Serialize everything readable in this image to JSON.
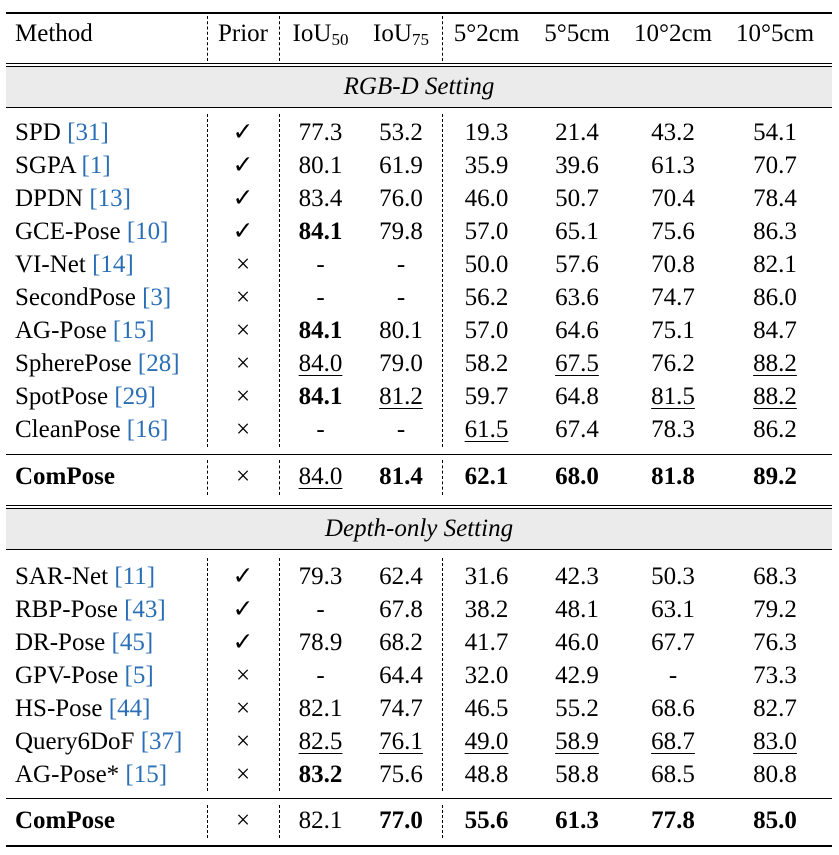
{
  "header": {
    "method": "Method",
    "prior": "Prior",
    "iou50_base": "IoU",
    "iou50_sub": "50",
    "iou75_base": "IoU",
    "iou75_sub": "75",
    "m_5_2": "5°2cm",
    "m_5_5": "5°5cm",
    "m_10_2": "10°2cm",
    "m_10_5": "10°5cm"
  },
  "sections": [
    {
      "title": "RGB-D Setting",
      "rows": [
        {
          "name": "SPD ",
          "ref": "[31]",
          "prior": "✓",
          "cells": [
            {
              "v": "77.3"
            },
            {
              "v": "53.2"
            },
            {
              "v": "19.3"
            },
            {
              "v": "21.4"
            },
            {
              "v": "43.2"
            },
            {
              "v": "54.1"
            }
          ]
        },
        {
          "name": "SGPA ",
          "ref": "[1]",
          "prior": "✓",
          "cells": [
            {
              "v": "80.1"
            },
            {
              "v": "61.9"
            },
            {
              "v": "35.9"
            },
            {
              "v": "39.6"
            },
            {
              "v": "61.3"
            },
            {
              "v": "70.7"
            }
          ]
        },
        {
          "name": "DPDN ",
          "ref": "[13]",
          "prior": "✓",
          "cells": [
            {
              "v": "83.4"
            },
            {
              "v": "76.0"
            },
            {
              "v": "46.0"
            },
            {
              "v": "50.7"
            },
            {
              "v": "70.4"
            },
            {
              "v": "78.4"
            }
          ]
        },
        {
          "name": "GCE-Pose ",
          "ref": "[10]",
          "prior": "✓",
          "cells": [
            {
              "v": "84.1",
              "b": true
            },
            {
              "v": "79.8"
            },
            {
              "v": "57.0"
            },
            {
              "v": "65.1"
            },
            {
              "v": "75.6"
            },
            {
              "v": "86.3"
            }
          ]
        },
        {
          "name": "VI-Net ",
          "ref": "[14]",
          "prior": "×",
          "cells": [
            {
              "v": "-"
            },
            {
              "v": "-"
            },
            {
              "v": "50.0"
            },
            {
              "v": "57.6"
            },
            {
              "v": "70.8"
            },
            {
              "v": "82.1"
            }
          ]
        },
        {
          "name": "SecondPose ",
          "ref": "[3]",
          "prior": "×",
          "cells": [
            {
              "v": "-"
            },
            {
              "v": "-"
            },
            {
              "v": "56.2"
            },
            {
              "v": "63.6"
            },
            {
              "v": "74.7"
            },
            {
              "v": "86.0"
            }
          ]
        },
        {
          "name": "AG-Pose ",
          "ref": "[15]",
          "prior": "×",
          "cells": [
            {
              "v": "84.1",
              "b": true
            },
            {
              "v": "80.1"
            },
            {
              "v": "57.0"
            },
            {
              "v": "64.6"
            },
            {
              "v": "75.1"
            },
            {
              "v": "84.7"
            }
          ]
        },
        {
          "name": "SpherePose ",
          "ref": "[28]",
          "prior": "×",
          "cells": [
            {
              "v": "84.0",
              "u": true
            },
            {
              "v": "79.0"
            },
            {
              "v": "58.2"
            },
            {
              "v": "67.5",
              "u": true
            },
            {
              "v": "76.2"
            },
            {
              "v": "88.2",
              "u": true
            }
          ]
        },
        {
          "name": "SpotPose ",
          "ref": "[29]",
          "prior": "×",
          "cells": [
            {
              "v": "84.1",
              "b": true
            },
            {
              "v": "81.2",
              "u": true
            },
            {
              "v": "59.7"
            },
            {
              "v": "64.8"
            },
            {
              "v": "81.5",
              "u": true
            },
            {
              "v": "88.2",
              "u": true
            }
          ]
        },
        {
          "name": "CleanPose ",
          "ref": "[16]",
          "prior": "×",
          "cells": [
            {
              "v": "-"
            },
            {
              "v": "-"
            },
            {
              "v": "61.5",
              "u": true
            },
            {
              "v": "67.4"
            },
            {
              "v": "78.3"
            },
            {
              "v": "86.2"
            }
          ]
        }
      ],
      "ours": {
        "name": "ComPose",
        "prior": "×",
        "cells": [
          {
            "v": "84.0",
            "u": true
          },
          {
            "v": "81.4",
            "b": true
          },
          {
            "v": "62.1",
            "b": true
          },
          {
            "v": "68.0",
            "b": true
          },
          {
            "v": "81.8",
            "b": true
          },
          {
            "v": "89.2",
            "b": true
          }
        ]
      }
    },
    {
      "title": "Depth-only Setting",
      "rows": [
        {
          "name": "SAR-Net ",
          "ref": "[11]",
          "prior": "✓",
          "cells": [
            {
              "v": "79.3"
            },
            {
              "v": "62.4"
            },
            {
              "v": "31.6"
            },
            {
              "v": "42.3"
            },
            {
              "v": "50.3"
            },
            {
              "v": "68.3"
            }
          ]
        },
        {
          "name": "RBP-Pose ",
          "ref": "[43]",
          "prior": "✓",
          "cells": [
            {
              "v": "-"
            },
            {
              "v": "67.8"
            },
            {
              "v": "38.2"
            },
            {
              "v": "48.1"
            },
            {
              "v": "63.1"
            },
            {
              "v": "79.2"
            }
          ]
        },
        {
          "name": "DR-Pose ",
          "ref": "[45]",
          "prior": "✓",
          "cells": [
            {
              "v": "78.9"
            },
            {
              "v": "68.2"
            },
            {
              "v": "41.7"
            },
            {
              "v": "46.0"
            },
            {
              "v": "67.7"
            },
            {
              "v": "76.3"
            }
          ]
        },
        {
          "name": "GPV-Pose ",
          "ref": "[5]",
          "prior": "×",
          "cells": [
            {
              "v": "-"
            },
            {
              "v": "64.4"
            },
            {
              "v": "32.0"
            },
            {
              "v": "42.9"
            },
            {
              "v": "-"
            },
            {
              "v": "73.3"
            }
          ]
        },
        {
          "name": "HS-Pose ",
          "ref": "[44]",
          "prior": "×",
          "cells": [
            {
              "v": "82.1"
            },
            {
              "v": "74.7"
            },
            {
              "v": "46.5"
            },
            {
              "v": "55.2"
            },
            {
              "v": "68.6"
            },
            {
              "v": "82.7"
            }
          ]
        },
        {
          "name": "Query6DoF ",
          "ref": "[37]",
          "prior": "×",
          "cells": [
            {
              "v": "82.5",
              "u": true
            },
            {
              "v": "76.1",
              "u": true
            },
            {
              "v": "49.0",
              "u": true
            },
            {
              "v": "58.9",
              "u": true
            },
            {
              "v": "68.7",
              "u": true
            },
            {
              "v": "83.0",
              "u": true
            }
          ]
        },
        {
          "name": "AG-Pose* ",
          "ref": "[15]",
          "prior": "×",
          "cells": [
            {
              "v": "83.2",
              "b": true
            },
            {
              "v": "75.6"
            },
            {
              "v": "48.8"
            },
            {
              "v": "58.8"
            },
            {
              "v": "68.5"
            },
            {
              "v": "80.8"
            }
          ]
        }
      ],
      "ours": {
        "name": "ComPose",
        "prior": "×",
        "cells": [
          {
            "v": "82.1"
          },
          {
            "v": "77.0",
            "b": true
          },
          {
            "v": "55.6",
            "b": true
          },
          {
            "v": "61.3",
            "b": true
          },
          {
            "v": "77.8",
            "b": true
          },
          {
            "v": "85.0",
            "b": true
          }
        ]
      }
    }
  ]
}
